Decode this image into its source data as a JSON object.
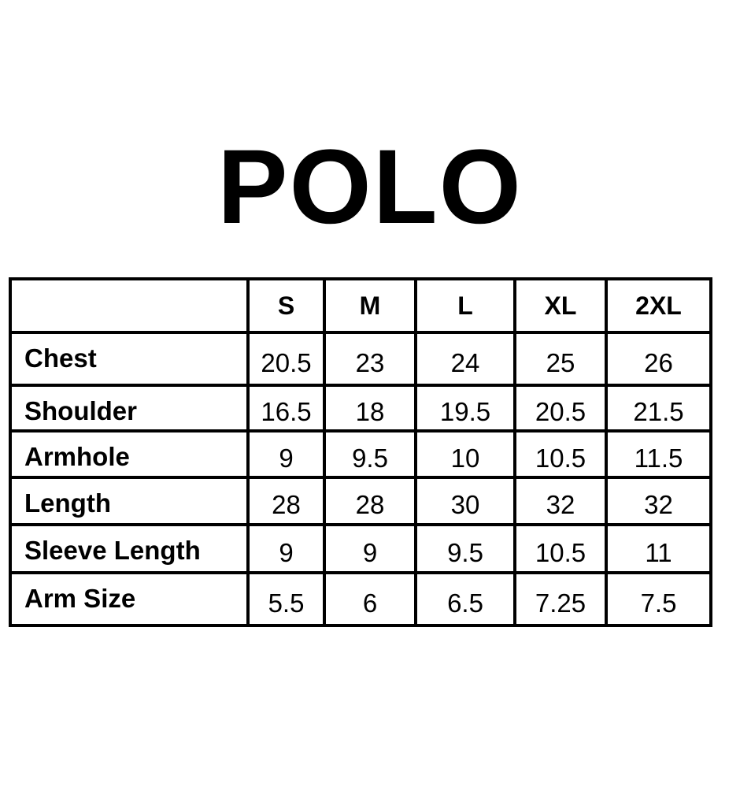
{
  "title": "POLO",
  "table": {
    "headers": [
      "",
      "S",
      "M",
      "L",
      "XL",
      "2XL"
    ],
    "rows": [
      {
        "label": "Chest",
        "values": [
          "20.5",
          "23",
          "24",
          "25",
          "26"
        ]
      },
      {
        "label": "Shoulder",
        "values": [
          "16.5",
          "18",
          "19.5",
          "20.5",
          "21.5"
        ]
      },
      {
        "label": "Armhole",
        "values": [
          "9",
          "9.5",
          "10",
          "10.5",
          "11.5"
        ]
      },
      {
        "label": "Length",
        "values": [
          "28",
          "28",
          "30",
          "32",
          "32"
        ]
      },
      {
        "label": "Sleeve Length",
        "values": [
          "9",
          "9",
          "9.5",
          "10.5",
          "11"
        ]
      },
      {
        "label": "Arm Size",
        "values": [
          "5.5",
          "6",
          "6.5",
          "7.25",
          "7.5"
        ]
      }
    ]
  }
}
